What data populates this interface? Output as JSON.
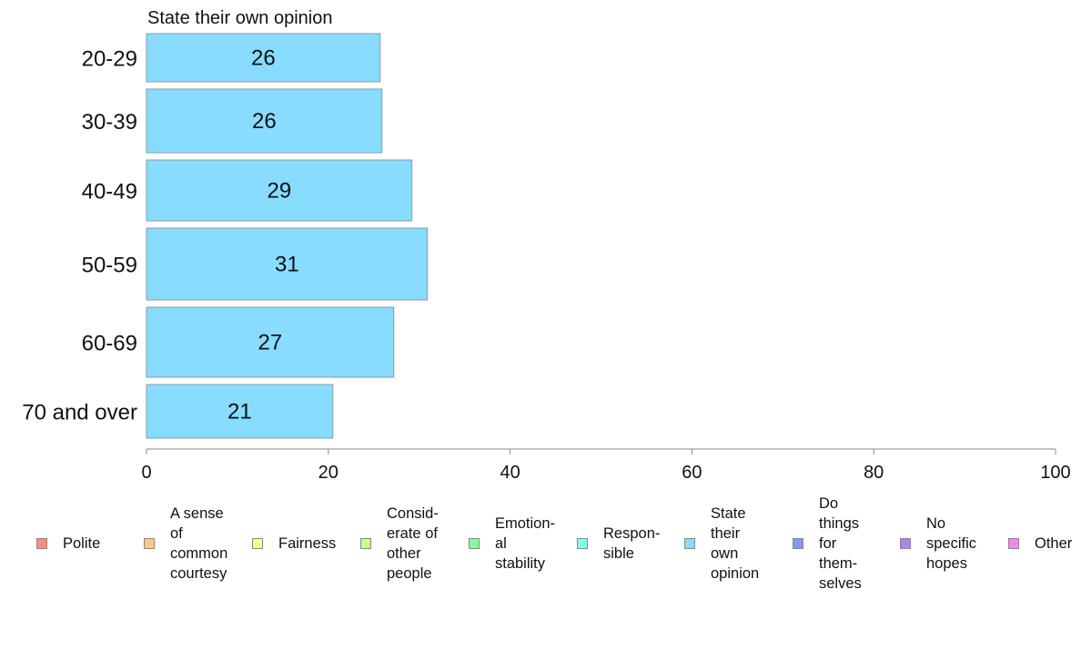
{
  "chart_data": {
    "type": "bar",
    "orientation": "horizontal",
    "panel_title": "State their own opinion",
    "categories": [
      "20-29",
      "30-39",
      "40-49",
      "50-59",
      "60-69",
      "70 and over"
    ],
    "values": [
      26,
      26,
      29,
      31,
      27,
      21
    ],
    "bar_values": [
      25.7,
      25.9,
      29.2,
      30.9,
      27.2,
      20.5
    ],
    "xlim": [
      0,
      100
    ],
    "xticks": [
      0,
      20,
      40,
      60,
      80,
      100
    ],
    "bar_color": "#87dcff",
    "bar_edge": "#8a9aa6",
    "legend_position": "bottom",
    "legend": [
      {
        "label": "Polite",
        "color": "#ff8a80"
      },
      {
        "label": "A sense\nof\ncommon\ncourtesy",
        "color": "#ffc980"
      },
      {
        "label": "Fairness",
        "color": "#ffff80"
      },
      {
        "label": "Consid-\nerate of\nother\npeople",
        "color": "#c8ff80"
      },
      {
        "label": "Emotion-\nal\nstability",
        "color": "#80ff9e"
      },
      {
        "label": "Respon-\nsible",
        "color": "#80ffe6"
      },
      {
        "label": "State\ntheir\nown\nopinion",
        "color": "#87dcff"
      },
      {
        "label": "Do\nthings\nfor\nthem-\nselves",
        "color": "#8099ff"
      },
      {
        "label": "No\nspecific\nhopes",
        "color": "#b080ff"
      },
      {
        "label": "Other",
        "color": "#ff80ff"
      }
    ]
  }
}
